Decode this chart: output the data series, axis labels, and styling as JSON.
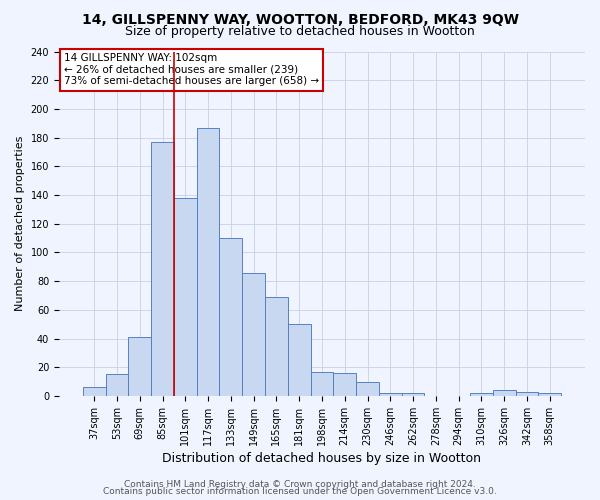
{
  "title1": "14, GILLSPENNY WAY, WOOTTON, BEDFORD, MK43 9QW",
  "title2": "Size of property relative to detached houses in Wootton",
  "xlabel": "Distribution of detached houses by size in Wootton",
  "ylabel": "Number of detached properties",
  "bin_labels": [
    "37sqm",
    "53sqm",
    "69sqm",
    "85sqm",
    "101sqm",
    "117sqm",
    "133sqm",
    "149sqm",
    "165sqm",
    "181sqm",
    "198sqm",
    "214sqm",
    "230sqm",
    "246sqm",
    "262sqm",
    "278sqm",
    "294sqm",
    "310sqm",
    "326sqm",
    "342sqm",
    "358sqm"
  ],
  "bar_heights": [
    6,
    15,
    41,
    177,
    138,
    187,
    110,
    86,
    69,
    50,
    17,
    16,
    10,
    2,
    2,
    0,
    0,
    2,
    4,
    3,
    2
  ],
  "bar_color": "#c8d8f0",
  "bar_edgecolor": "#5580c0",
  "ylim": [
    0,
    240
  ],
  "yticks": [
    0,
    20,
    40,
    60,
    80,
    100,
    120,
    140,
    160,
    180,
    200,
    220,
    240
  ],
  "vline_x_idx": 4,
  "vline_color": "#cc0000",
  "annotation_text": "14 GILLSPENNY WAY: 102sqm\n← 26% of detached houses are smaller (239)\n73% of semi-detached houses are larger (658) →",
  "annotation_box_color": "white",
  "annotation_box_edgecolor": "#cc0000",
  "footer1": "Contains HM Land Registry data © Crown copyright and database right 2024.",
  "footer2": "Contains public sector information licensed under the Open Government Licence v3.0.",
  "bg_color": "#f0f4ff",
  "grid_color": "#c8d0e8",
  "title1_fontsize": 10,
  "title2_fontsize": 9,
  "xlabel_fontsize": 9,
  "ylabel_fontsize": 8,
  "tick_fontsize": 7,
  "annotation_fontsize": 7.5,
  "footer_fontsize": 6.5
}
